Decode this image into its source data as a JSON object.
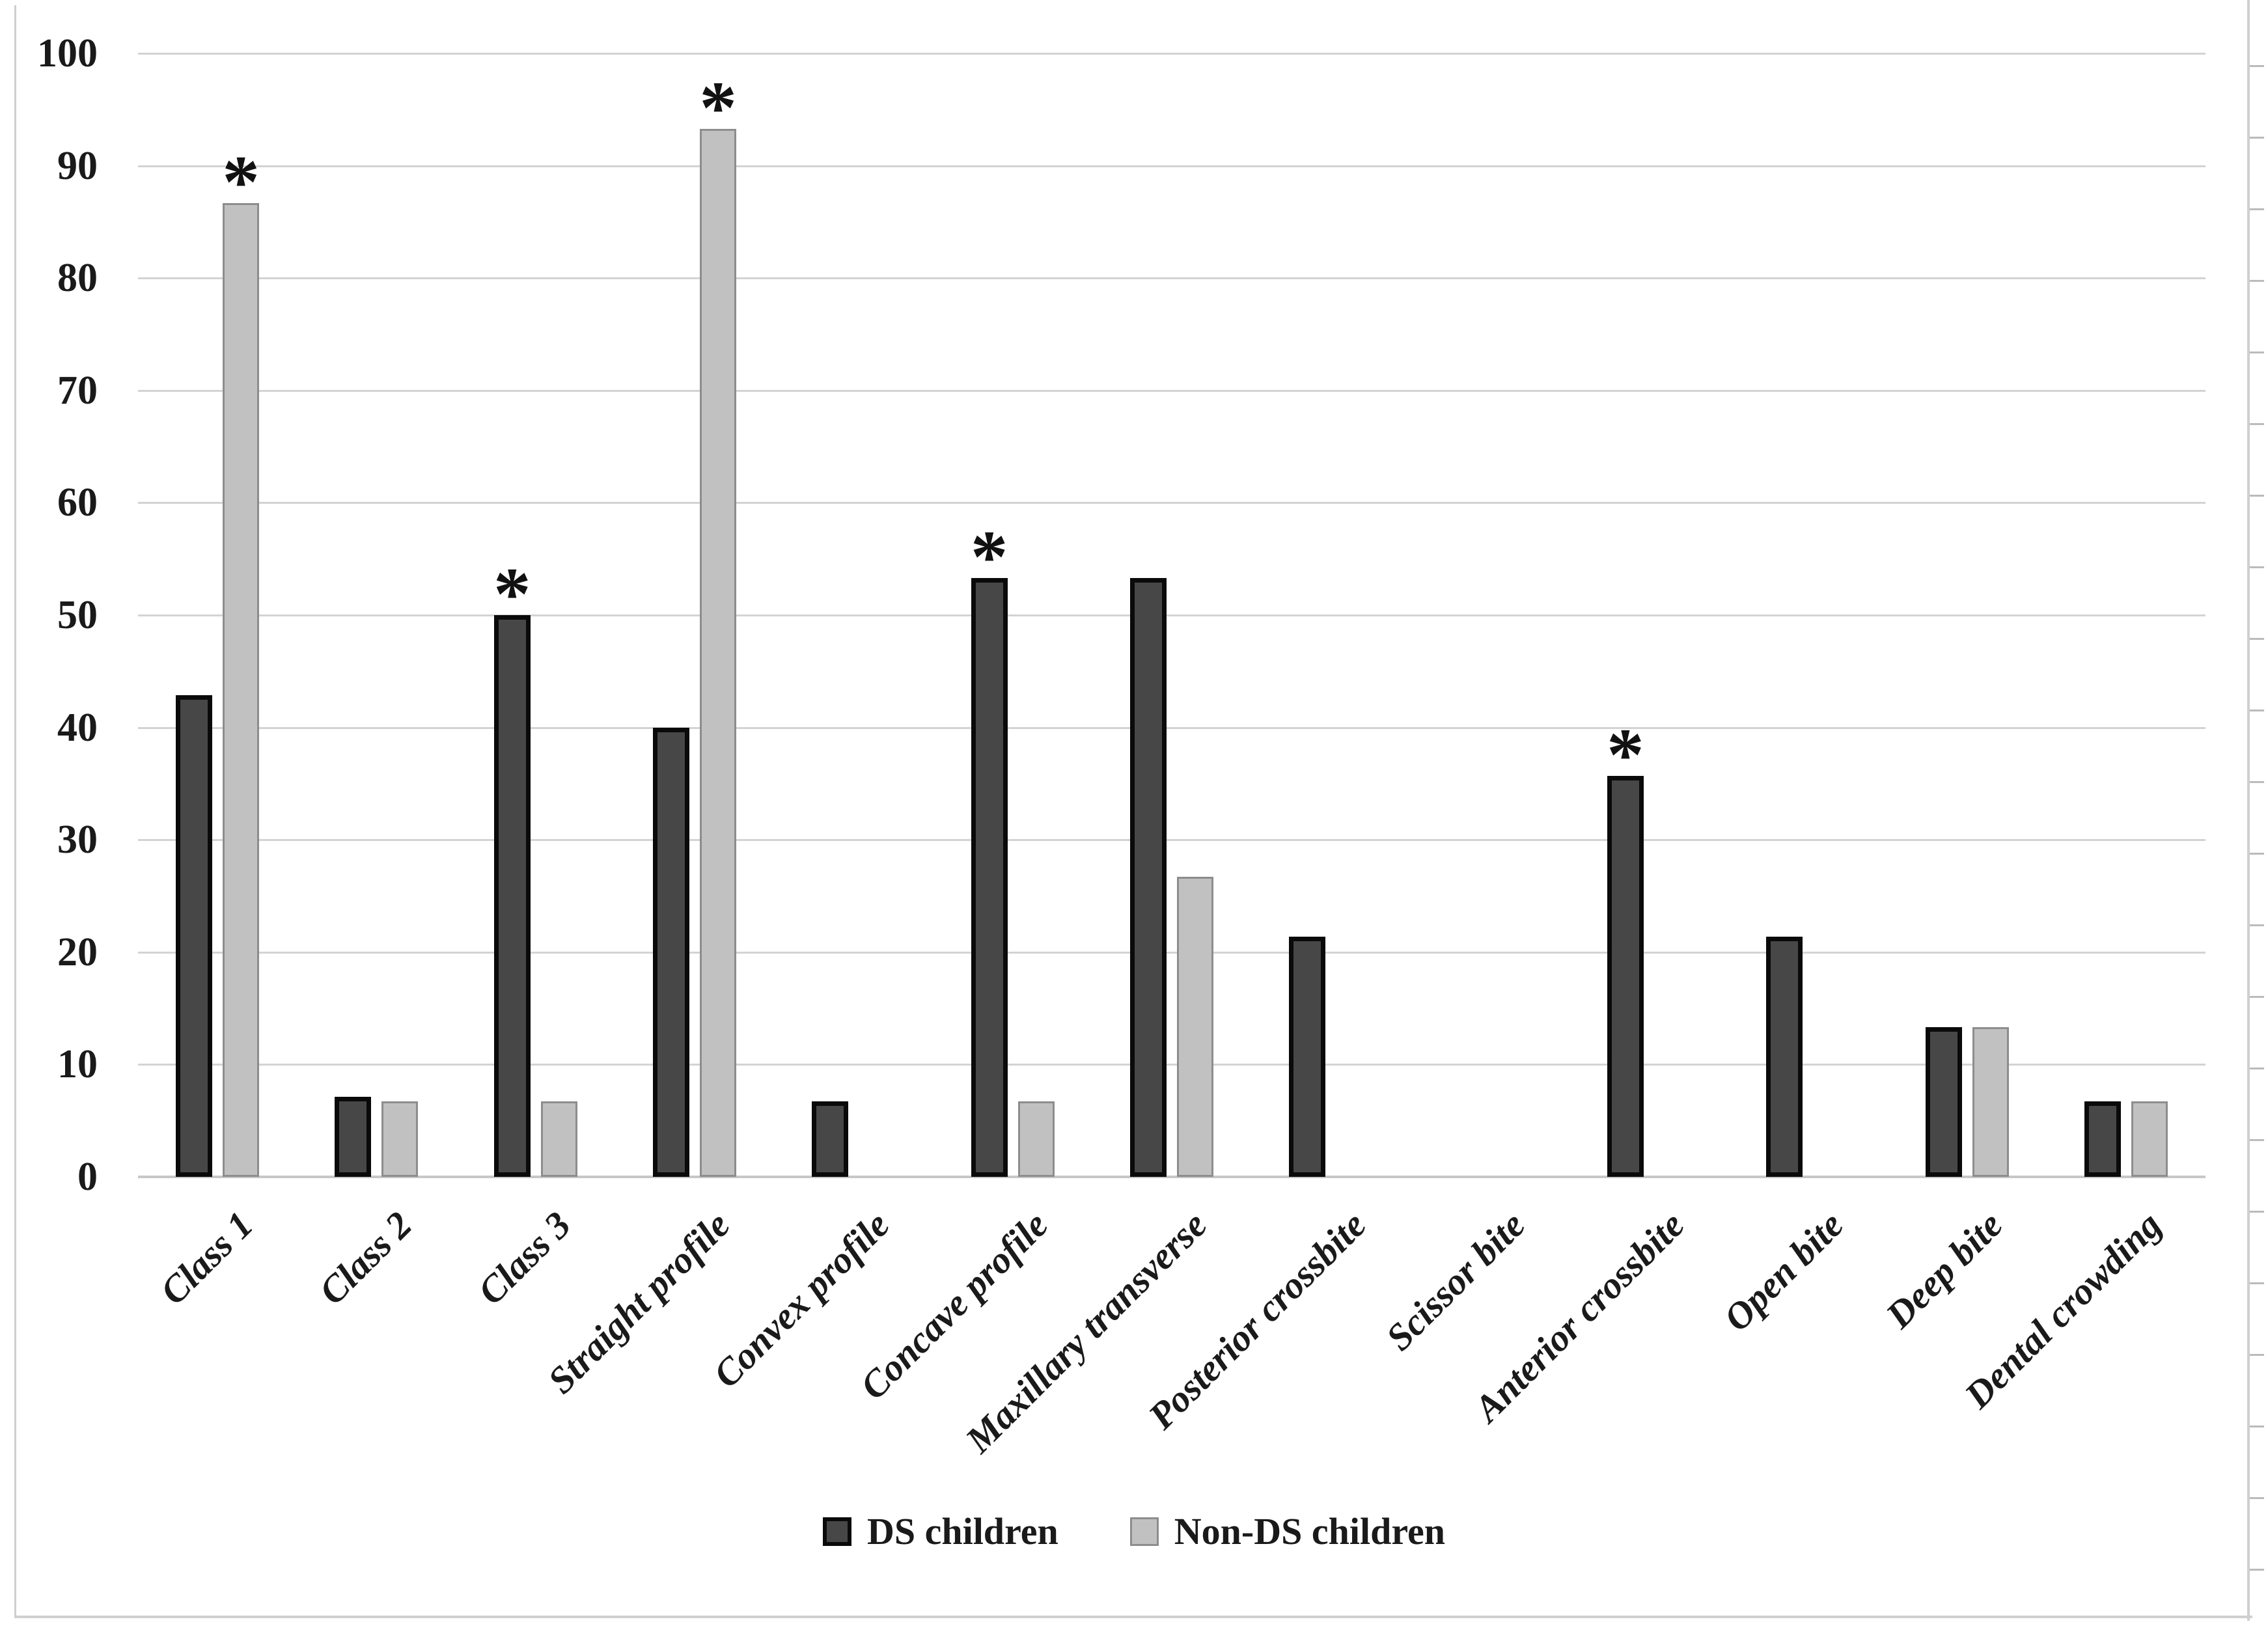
{
  "figure": {
    "background": "#ffffff",
    "border_color": "#cfcfcf",
    "edge_tick_color": "#bbbbbb"
  },
  "colors": {
    "ds_fill": "#474747",
    "ds_border": "#0a0a0a",
    "nonds_fill": "#c1c1c1",
    "nonds_border": "#8d8d8d",
    "gridline": "#d3d3d3",
    "baseline": "#c7c7c7",
    "text": "#1a1a1a"
  },
  "legend": {
    "items": [
      {
        "label": "DS children",
        "swatch": "ds"
      },
      {
        "label": "Non-DS children",
        "swatch": "nonds"
      }
    ]
  },
  "y_axis": {
    "min": 0,
    "max": 100,
    "step": 10,
    "tick_labels": [
      "0",
      "10",
      "20",
      "30",
      "40",
      "50",
      "60",
      "70",
      "80",
      "90",
      "100"
    ]
  },
  "annotation_symbol": "*",
  "chart_data": {
    "type": "bar",
    "title": "",
    "xlabel": "",
    "ylabel": "",
    "ylim": [
      0,
      100
    ],
    "grid": true,
    "legend_position": "bottom",
    "categories": [
      "Class 1",
      "Class 2",
      "Class 3",
      "Straight profile",
      "Convex profile",
      "Concave profile",
      "Maxillary transverse",
      "Posterior crossbite",
      "Scissor bite",
      "Anterior crossbite",
      "Open bite",
      "Deep bite",
      "Dental crowding"
    ],
    "series": [
      {
        "name": "DS children",
        "key": "ds",
        "values": [
          42.9,
          7.1,
          50,
          40,
          6.7,
          53.3,
          53.3,
          21.4,
          0,
          35.7,
          21.4,
          13.3,
          6.7
        ]
      },
      {
        "name": "Non-DS children",
        "key": "nonds",
        "values": [
          86.7,
          6.7,
          6.7,
          93.3,
          0,
          6.7,
          26.7,
          0,
          0,
          0,
          0,
          13.3,
          6.7
        ]
      }
    ],
    "significance_asterisks": [
      {
        "category": "Class 1",
        "category_index": 0,
        "series": "nonds"
      },
      {
        "category": "Class 3",
        "category_index": 2,
        "series": "ds"
      },
      {
        "category": "Straight profile",
        "category_index": 3,
        "series": "nonds"
      },
      {
        "category": "Concave profile",
        "category_index": 5,
        "series": "ds"
      },
      {
        "category": "Anterior crossbite",
        "category_index": 9,
        "series": "ds"
      }
    ]
  }
}
